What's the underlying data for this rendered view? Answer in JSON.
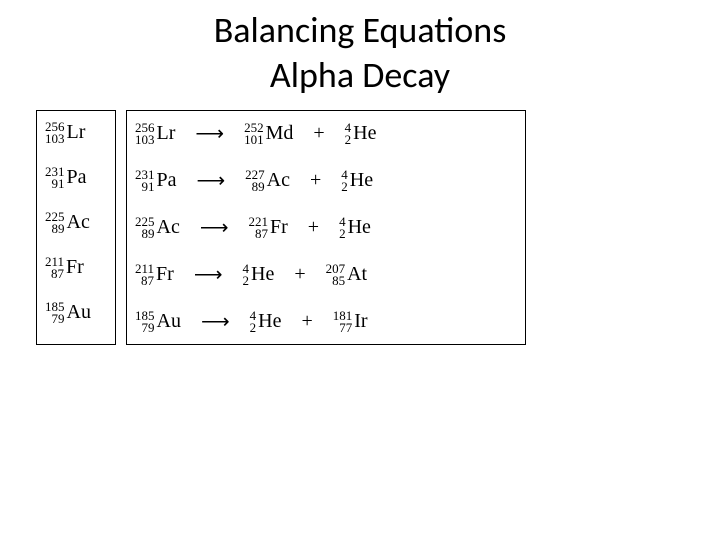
{
  "title": {
    "line1": "Balancing Equations",
    "line2": "Alpha Decay"
  },
  "style": {
    "background_color": "#ffffff",
    "text_color": "#000000",
    "border_color": "#000000",
    "title_fontsize": 36,
    "isotope_fontsize": 20,
    "superscript_fontsize": 13,
    "font_serif": "Times New Roman",
    "font_sans": "Calibri"
  },
  "arrow": "⟶",
  "plus": "+",
  "equations": [
    {
      "reactant": {
        "mass": "256",
        "atomic": "103",
        "symbol": "Lr"
      },
      "product1": {
        "mass": "252",
        "atomic": "101",
        "symbol": "Md"
      },
      "product2": {
        "mass": "4",
        "atomic": "2",
        "symbol": "He"
      }
    },
    {
      "reactant": {
        "mass": "231",
        "atomic": "91",
        "symbol": "Pa"
      },
      "product1": {
        "mass": "227",
        "atomic": "89",
        "symbol": "Ac"
      },
      "product2": {
        "mass": "4",
        "atomic": "2",
        "symbol": "He"
      }
    },
    {
      "reactant": {
        "mass": "225",
        "atomic": "89",
        "symbol": "Ac"
      },
      "product1": {
        "mass": "221",
        "atomic": "87",
        "symbol": "Fr"
      },
      "product2": {
        "mass": "4",
        "atomic": "2",
        "symbol": "He"
      }
    },
    {
      "reactant": {
        "mass": "211",
        "atomic": "87",
        "symbol": "Fr"
      },
      "product1": {
        "mass": "4",
        "atomic": "2",
        "symbol": "He"
      },
      "product2": {
        "mass": "207",
        "atomic": "85",
        "symbol": "At"
      }
    },
    {
      "reactant": {
        "mass": "185",
        "atomic": "79",
        "symbol": "Au"
      },
      "product1": {
        "mass": "4",
        "atomic": "2",
        "symbol": "He"
      },
      "product2": {
        "mass": "181",
        "atomic": "77",
        "symbol": "Ir"
      }
    }
  ]
}
